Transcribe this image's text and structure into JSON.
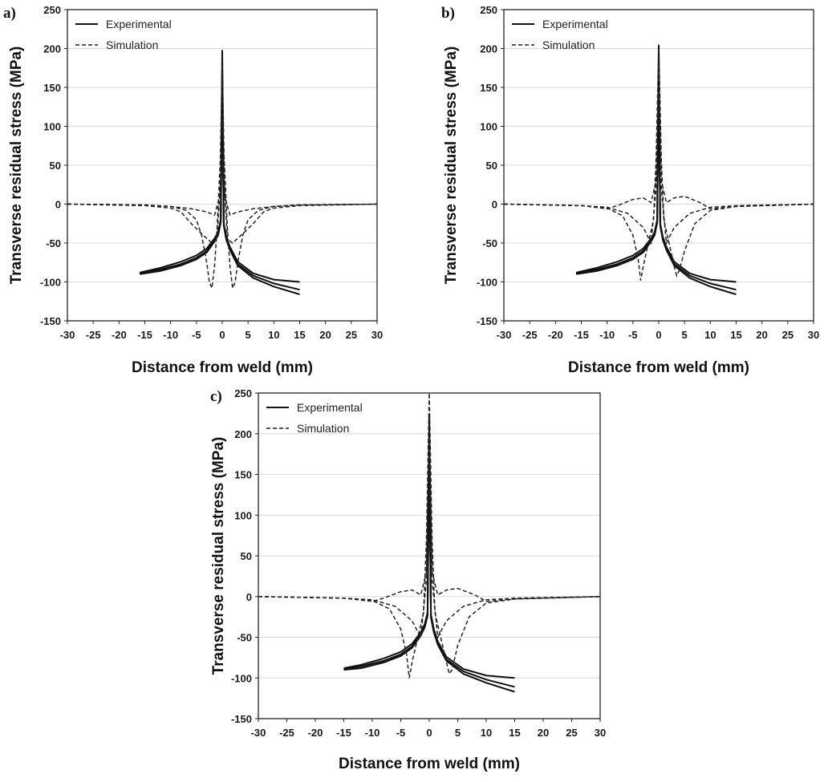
{
  "chart_data": [
    {
      "panel": "a)",
      "type": "line",
      "xlabel": "Distance from weld (mm)",
      "ylabel": "Transverse residual stress (MPa)",
      "xlim": [
        -30,
        30
      ],
      "ylim": [
        -150,
        250
      ],
      "xticks": [
        -30,
        -25,
        -20,
        -15,
        -10,
        -5,
        0,
        5,
        10,
        15,
        20,
        25,
        30
      ],
      "yticks": [
        -150,
        -100,
        -50,
        0,
        50,
        100,
        150,
        200,
        250
      ],
      "grid": "horizontal",
      "legend": {
        "position": "top-left",
        "entries": [
          {
            "label": "Experimental",
            "style": "solid"
          },
          {
            "label": "Simulation",
            "style": "dashed"
          }
        ]
      },
      "series": [
        {
          "name": "Experimental",
          "style": "solid",
          "x": [
            -16,
            -12,
            -8,
            -5,
            -3,
            -1.5,
            -0.8,
            -0.3,
            0,
            0.3,
            0.8,
            1.5,
            3,
            6,
            10,
            15
          ],
          "y": [
            -88,
            -82,
            -74,
            -66,
            -57,
            -44,
            -36,
            -20,
            198,
            -25,
            -42,
            -55,
            -74,
            -89,
            -97,
            -100
          ]
        },
        {
          "name": "Experimental",
          "style": "solid",
          "x": [
            -16,
            -12,
            -8,
            -5,
            -3,
            -1.5,
            -0.8,
            -0.3,
            0,
            0.3,
            0.8,
            1.5,
            3,
            6,
            10,
            15
          ],
          "y": [
            -89,
            -84,
            -77,
            -69,
            -60,
            -46,
            -38,
            -22,
            175,
            -26,
            -44,
            -57,
            -77,
            -92,
            -102,
            -110
          ]
        },
        {
          "name": "Experimental",
          "style": "solid",
          "x": [
            -16,
            -12,
            -8,
            -5,
            -3,
            -1.5,
            -0.8,
            -0.3,
            0,
            0.3,
            0.8,
            1.5,
            3,
            6,
            10,
            15
          ],
          "y": [
            -90,
            -86,
            -79,
            -71,
            -62,
            -48,
            -40,
            -24,
            150,
            -28,
            -46,
            -59,
            -79,
            -95,
            -106,
            -116
          ]
        },
        {
          "name": "Simulation",
          "style": "dashed",
          "x": [
            -30,
            -15,
            -10,
            -7,
            -5,
            -4,
            -3,
            -2.5,
            -2,
            -1.5,
            -1,
            -0.5,
            0,
            0.5,
            1,
            1.5,
            2,
            2.5,
            3,
            4,
            5,
            7,
            10,
            15,
            30
          ],
          "y": [
            0,
            -1,
            -3,
            -8,
            -20,
            -40,
            -75,
            -100,
            -108,
            -80,
            -30,
            40,
            110,
            40,
            -30,
            -80,
            -108,
            -100,
            -75,
            -40,
            -20,
            -8,
            -3,
            -1,
            0
          ]
        },
        {
          "name": "Simulation",
          "style": "dashed",
          "x": [
            -30,
            -15,
            -10,
            -8,
            -6,
            -4,
            -2,
            -1,
            0,
            1,
            2,
            4,
            6,
            8,
            10,
            15,
            30
          ],
          "y": [
            0,
            -2,
            -5,
            -10,
            -25,
            -38,
            -50,
            -45,
            70,
            -45,
            -50,
            -38,
            -25,
            -10,
            -5,
            -2,
            0
          ]
        },
        {
          "name": "Simulation",
          "style": "dashed",
          "x": [
            -30,
            -15,
            -10,
            -6,
            -3,
            -1.5,
            -0.5,
            0,
            0.5,
            1.5,
            3,
            6,
            10,
            15,
            30
          ],
          "y": [
            0,
            -1,
            -3,
            -6,
            -10,
            -14,
            10,
            185,
            10,
            -14,
            -10,
            -6,
            -3,
            -1,
            0
          ]
        }
      ]
    },
    {
      "panel": "b)",
      "type": "line",
      "xlabel": "Distance from weld (mm)",
      "ylabel": "Transverse residual stress (MPa)",
      "xlim": [
        -30,
        30
      ],
      "ylim": [
        -150,
        250
      ],
      "xticks": [
        -30,
        -25,
        -20,
        -15,
        -10,
        -5,
        0,
        5,
        10,
        15,
        20,
        25,
        30
      ],
      "yticks": [
        -150,
        -100,
        -50,
        0,
        50,
        100,
        150,
        200,
        250
      ],
      "grid": "horizontal",
      "legend": {
        "position": "top-left",
        "entries": [
          {
            "label": "Experimental",
            "style": "solid"
          },
          {
            "label": "Simulation",
            "style": "dashed"
          }
        ]
      },
      "series": [
        {
          "name": "Experimental",
          "style": "solid",
          "x": [
            -16,
            -12,
            -8,
            -5,
            -3,
            -1.5,
            -0.8,
            -0.3,
            0,
            0.3,
            0.8,
            1.5,
            3,
            6,
            10,
            15
          ],
          "y": [
            -88,
            -82,
            -74,
            -66,
            -57,
            -44,
            -36,
            -20,
            205,
            -25,
            -42,
            -55,
            -74,
            -89,
            -97,
            -100
          ]
        },
        {
          "name": "Experimental",
          "style": "solid",
          "x": [
            -16,
            -12,
            -8,
            -5,
            -3,
            -1.5,
            -0.8,
            -0.3,
            0,
            0.3,
            0.8,
            1.5,
            3,
            6,
            10,
            15
          ],
          "y": [
            -89,
            -84,
            -77,
            -69,
            -60,
            -46,
            -38,
            -22,
            180,
            -26,
            -44,
            -57,
            -77,
            -92,
            -102,
            -110
          ]
        },
        {
          "name": "Experimental",
          "style": "solid",
          "x": [
            -16,
            -12,
            -8,
            -5,
            -3,
            -1.5,
            -0.8,
            -0.3,
            0,
            0.3,
            0.8,
            1.5,
            3,
            6,
            10,
            15
          ],
          "y": [
            -90,
            -86,
            -79,
            -71,
            -62,
            -48,
            -40,
            -24,
            160,
            -28,
            -46,
            -59,
            -79,
            -95,
            -106,
            -116
          ]
        },
        {
          "name": "Simulation",
          "style": "dashed",
          "x": [
            -30,
            -15,
            -10,
            -7,
            -5,
            -4,
            -3.5,
            -3,
            -2,
            -1,
            -0.5,
            0,
            0.5,
            1,
            2,
            3,
            3.5,
            4,
            5,
            7,
            10,
            15,
            30
          ],
          "y": [
            0,
            -2,
            -5,
            -15,
            -40,
            -70,
            -98,
            -80,
            -50,
            -20,
            60,
            205,
            60,
            -20,
            -50,
            -80,
            -92,
            -85,
            -60,
            -25,
            -8,
            -3,
            0
          ]
        },
        {
          "name": "Simulation",
          "style": "dashed",
          "x": [
            -30,
            -15,
            -10,
            -8,
            -5,
            -3,
            -1.5,
            -0.5,
            0,
            0.5,
            1.5,
            3,
            5,
            8,
            10,
            15,
            30
          ],
          "y": [
            0,
            -2,
            -6,
            -2,
            6,
            8,
            2,
            30,
            180,
            30,
            2,
            8,
            10,
            2,
            -6,
            -3,
            0
          ]
        },
        {
          "name": "Simulation",
          "style": "dashed",
          "x": [
            -30,
            -15,
            -10,
            -6,
            -3,
            -1.5,
            -0.5,
            0,
            0.5,
            1.5,
            3,
            6,
            10,
            15,
            30
          ],
          "y": [
            0,
            -2,
            -4,
            -12,
            -30,
            -50,
            20,
            150,
            20,
            -50,
            -30,
            -12,
            -4,
            -2,
            0
          ]
        }
      ]
    },
    {
      "panel": "c)",
      "type": "line",
      "xlabel": "Distance from weld (mm)",
      "ylabel": "Transverse residual stress (MPa)",
      "xlim": [
        -30,
        30
      ],
      "ylim": [
        -150,
        250
      ],
      "xticks": [
        -30,
        -25,
        -20,
        -15,
        -10,
        -5,
        0,
        5,
        10,
        15,
        20,
        25,
        30
      ],
      "yticks": [
        -150,
        -100,
        -50,
        0,
        50,
        100,
        150,
        200,
        250
      ],
      "grid": "horizontal",
      "legend": {
        "position": "top-left",
        "entries": [
          {
            "label": "Experimental",
            "style": "solid"
          },
          {
            "label": "Simulation",
            "style": "dashed"
          }
        ]
      },
      "series": [
        {
          "name": "Experimental",
          "style": "solid",
          "x": [
            -15,
            -12,
            -8,
            -5,
            -3,
            -1.5,
            -0.8,
            -0.3,
            0,
            0.3,
            0.8,
            1.5,
            3,
            6,
            10,
            15
          ],
          "y": [
            -88,
            -84,
            -76,
            -68,
            -58,
            -44,
            -34,
            -20,
            225,
            -22,
            -40,
            -55,
            -74,
            -89,
            -97,
            -100
          ]
        },
        {
          "name": "Experimental",
          "style": "solid",
          "x": [
            -15,
            -12,
            -8,
            -5,
            -3,
            -1.5,
            -0.8,
            -0.3,
            0,
            0.3,
            0.8,
            1.5,
            3,
            6,
            10,
            15
          ],
          "y": [
            -89,
            -86,
            -79,
            -71,
            -61,
            -46,
            -36,
            -22,
            200,
            -24,
            -42,
            -57,
            -77,
            -92,
            -102,
            -111
          ]
        },
        {
          "name": "Experimental",
          "style": "solid",
          "x": [
            -15,
            -12,
            -8,
            -5,
            -3,
            -1.5,
            -0.8,
            -0.3,
            0,
            0.3,
            0.8,
            1.5,
            3,
            6,
            10,
            15
          ],
          "y": [
            -90,
            -88,
            -81,
            -73,
            -63,
            -48,
            -38,
            -24,
            180,
            -26,
            -44,
            -59,
            -79,
            -95,
            -106,
            -117
          ]
        },
        {
          "name": "Simulation",
          "style": "dashed",
          "x": [
            -30,
            -15,
            -10,
            -7,
            -5,
            -4,
            -3.5,
            -3,
            -2,
            -1,
            -0.5,
            0,
            0.5,
            1,
            2,
            3,
            3.5,
            4,
            5,
            7,
            10,
            15,
            30
          ],
          "y": [
            0,
            -2,
            -5,
            -15,
            -40,
            -70,
            -100,
            -80,
            -50,
            -20,
            70,
            250,
            70,
            -20,
            -50,
            -80,
            -95,
            -90,
            -60,
            -25,
            -8,
            -3,
            0
          ]
        },
        {
          "name": "Simulation",
          "style": "dashed",
          "x": [
            -30,
            -15,
            -10,
            -8,
            -5,
            -3,
            -1.5,
            -0.5,
            0,
            0.5,
            1.5,
            3,
            5,
            8,
            10,
            15,
            30
          ],
          "y": [
            0,
            -2,
            -6,
            -2,
            6,
            8,
            2,
            30,
            210,
            30,
            2,
            8,
            10,
            2,
            -6,
            -3,
            0
          ]
        },
        {
          "name": "Simulation",
          "style": "dashed",
          "x": [
            -30,
            -15,
            -10,
            -6,
            -3,
            -1.5,
            -0.5,
            0,
            0.5,
            1.5,
            3,
            6,
            10,
            15,
            30
          ],
          "y": [
            0,
            -2,
            -4,
            -12,
            -30,
            -50,
            20,
            175,
            20,
            -50,
            -30,
            -12,
            -4,
            -2,
            0
          ]
        }
      ]
    }
  ]
}
